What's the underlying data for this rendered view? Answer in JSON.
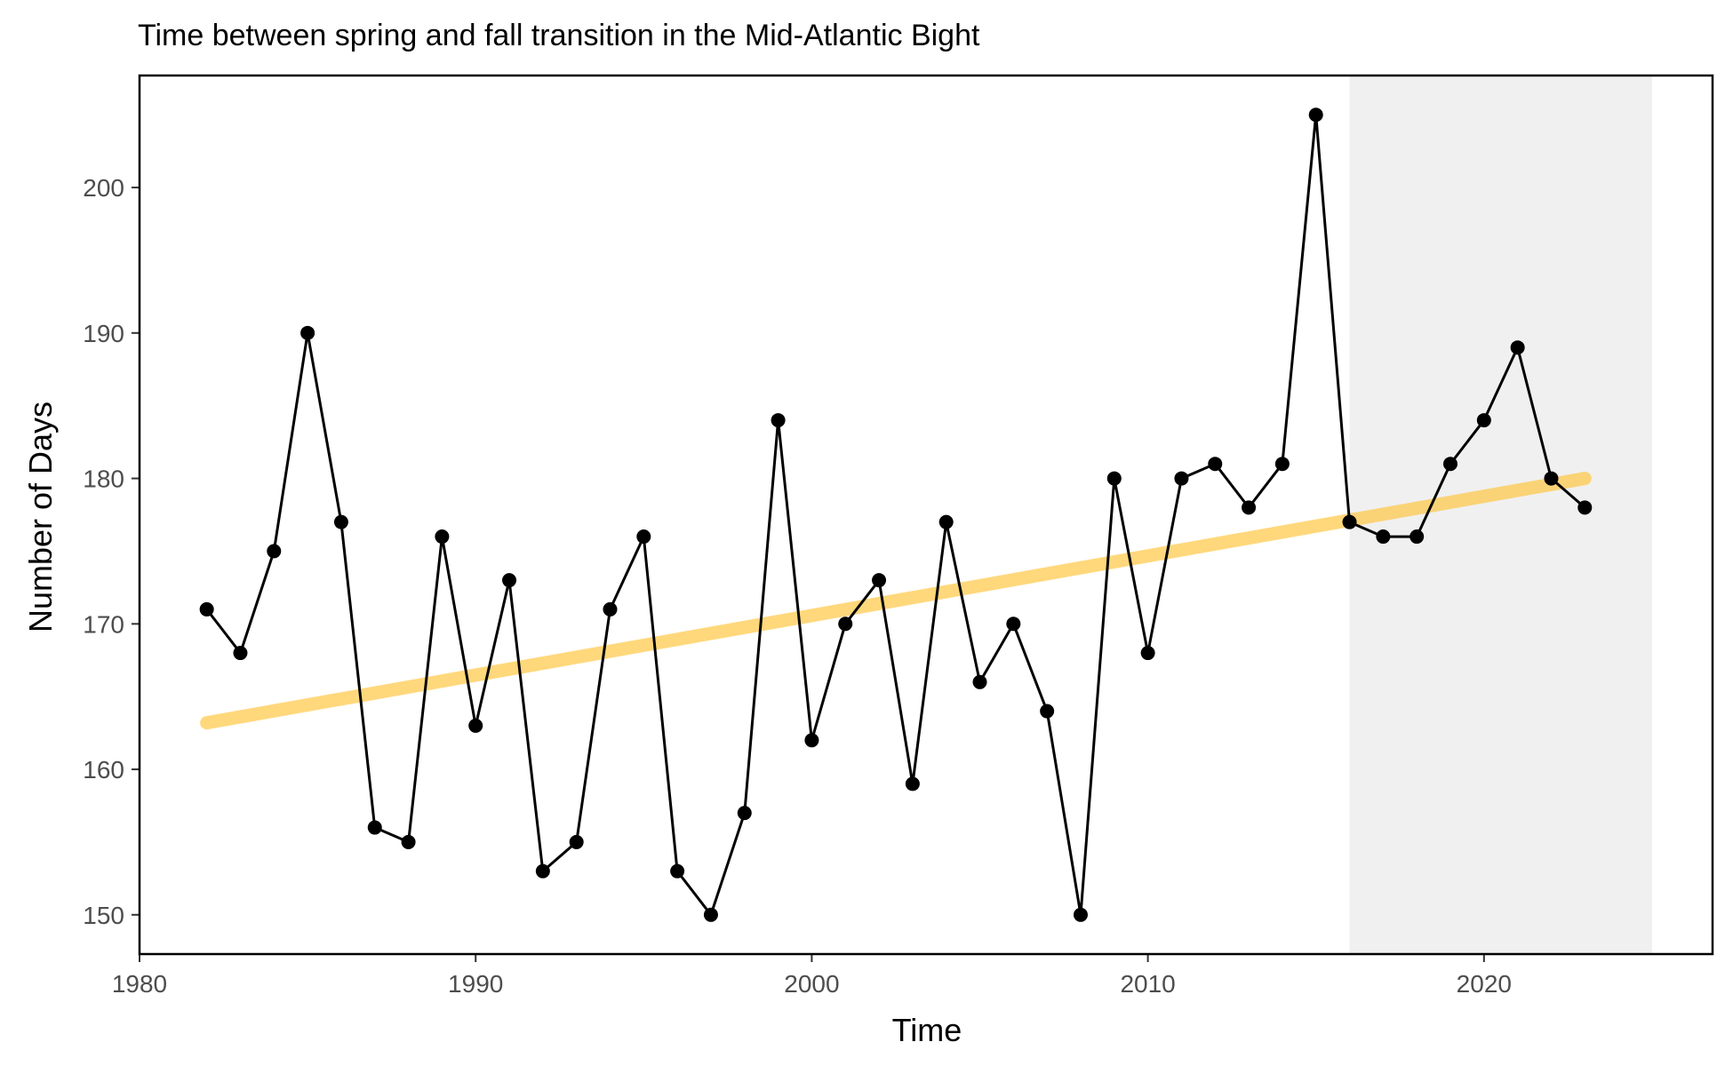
{
  "chart_data": {
    "type": "line",
    "title": "Time between spring and fall transition in the Mid-Atlantic Bight",
    "xlabel": "Time",
    "ylabel": "Number of Days",
    "xlim": [
      1980,
      2026.8
    ],
    "ylim": [
      147.3,
      207.7
    ],
    "xticks": [
      1980,
      1990,
      2000,
      2010,
      2020
    ],
    "xtick_labels": [
      "1980",
      "1990",
      "2000",
      "2010",
      "2020"
    ],
    "yticks": [
      150,
      160,
      170,
      180,
      190,
      200
    ],
    "ytick_labels": [
      "150",
      "160",
      "170",
      "180",
      "190",
      "200"
    ],
    "grid": false,
    "legend": "none",
    "shaded_region": {
      "x_start": 2016,
      "x_end": 2025,
      "color": "#f0f0f0"
    },
    "series": [
      {
        "x": [
          1982,
          1983,
          1984,
          1985,
          1986,
          1987,
          1988,
          1989,
          1990,
          1991,
          1992,
          1993,
          1994,
          1995,
          1996,
          1997,
          1998,
          1999,
          2000,
          2001,
          2002,
          2003,
          2004,
          2005,
          2006,
          2007,
          2008,
          2009,
          2010,
          2011,
          2012,
          2013,
          2014,
          2015,
          2016,
          2017,
          2018,
          2019,
          2020,
          2021,
          2022,
          2023
        ],
        "values": [
          171,
          168,
          175,
          190,
          177,
          156,
          155,
          176,
          163,
          173,
          153,
          155,
          171,
          176,
          153,
          150,
          157,
          184,
          162,
          170,
          173,
          159,
          177,
          166,
          170,
          164,
          150,
          180,
          168,
          180,
          181,
          178,
          181,
          205,
          177,
          176,
          176,
          181,
          184,
          189,
          180,
          178
        ],
        "color": "#000000"
      }
    ],
    "trend_line": {
      "x": [
        1982,
        2023
      ],
      "values": [
        163.2,
        180.0
      ],
      "color": "#ffc845"
    }
  }
}
